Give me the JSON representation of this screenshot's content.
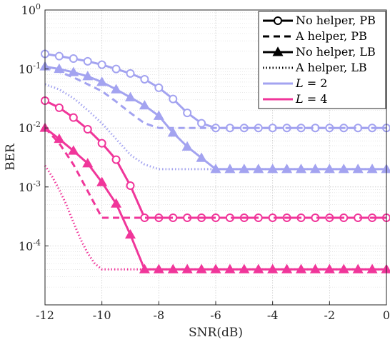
{
  "chart_data": {
    "type": "line",
    "title": "",
    "xlabel": "SNR(dB)",
    "ylabel": "BER",
    "xlim": [
      -12,
      0
    ],
    "ylim": [
      1e-05,
      1
    ],
    "yscale": "log",
    "grid": true,
    "legend_position": "top-right",
    "x_ticks": [
      -12,
      -10,
      -8,
      -6,
      -4,
      -2,
      0
    ],
    "x_tick_labels": [
      "-12",
      "-10",
      "-8",
      "-6",
      "-4",
      "-2",
      "0"
    ],
    "y_ticks": [
      0.0001,
      0.001,
      0.01,
      0.1,
      1
    ],
    "y_tick_labels": [
      {
        "base": "10",
        "exp": "-4"
      },
      {
        "base": "10",
        "exp": "-3"
      },
      {
        "base": "10",
        "exp": "-2"
      },
      {
        "base": "10",
        "exp": "-1"
      },
      {
        "base": "10",
        "exp": "0"
      }
    ],
    "colors": {
      "L2": "#a3a3f0",
      "L4": "#f0369a"
    },
    "legend": [
      {
        "label": "No helper, PB",
        "style": "solid",
        "marker": "circle",
        "color": "#000000"
      },
      {
        "label": "A helper, PB",
        "style": "dashed",
        "marker": "none",
        "color": "#000000"
      },
      {
        "label": "No helper, LB",
        "style": "solid",
        "marker": "triangle",
        "color": "#000000"
      },
      {
        "label": "A helper, LB",
        "style": "dotted",
        "marker": "none",
        "color": "#000000"
      },
      {
        "label_var": "L",
        "label_val": " = 2",
        "style": "solid",
        "marker": "none",
        "color": "#a3a3f0"
      },
      {
        "label_var": "L",
        "label_val": " = 4",
        "style": "solid",
        "marker": "none",
        "color": "#f0369a"
      }
    ],
    "series": [
      {
        "group": "L2",
        "style": "solid",
        "marker": "circle",
        "x": [
          -12,
          -11.5,
          -11,
          -10.5,
          -10,
          -9.5,
          -9,
          -8.5,
          -8,
          -7.5,
          -7,
          -6.5,
          -6,
          -5.5,
          -5,
          -4.5,
          -4,
          -3.5,
          -3,
          -2.5,
          -2,
          -1.5,
          -1,
          -0.5,
          0
        ],
        "y": [
          0.18,
          0.165,
          0.15,
          0.135,
          0.118,
          0.1,
          0.084,
          0.067,
          0.048,
          0.031,
          0.018,
          0.012,
          0.01,
          0.01,
          0.01,
          0.01,
          0.01,
          0.01,
          0.01,
          0.01,
          0.01,
          0.01,
          0.01,
          0.01,
          0.01
        ]
      },
      {
        "group": "L2",
        "style": "dashed",
        "marker": "none",
        "x": [
          -12,
          -11.5,
          -11,
          -10.5,
          -10,
          -9.5,
          -9,
          -8.5,
          -8,
          -7.5,
          -7,
          -6.5,
          -6,
          -3,
          0
        ],
        "y": [
          0.11,
          0.09,
          0.072,
          0.055,
          0.042,
          0.028,
          0.018,
          0.012,
          0.01,
          0.01,
          0.01,
          0.01,
          0.01,
          0.01,
          0.01
        ]
      },
      {
        "group": "L2",
        "style": "solid",
        "marker": "triangle",
        "x": [
          -12,
          -11.5,
          -11,
          -10.5,
          -10,
          -9.5,
          -9,
          -8.5,
          -8,
          -7.5,
          -7,
          -6.5,
          -6,
          -5.5,
          -5,
          -4.5,
          -4,
          -3.5,
          -3,
          -2.5,
          -2,
          -1.5,
          -1,
          -0.5,
          0
        ],
        "y": [
          0.11,
          0.1,
          0.088,
          0.075,
          0.06,
          0.045,
          0.033,
          0.024,
          0.016,
          0.0083,
          0.0048,
          0.0031,
          0.002,
          0.002,
          0.002,
          0.002,
          0.002,
          0.002,
          0.002,
          0.002,
          0.002,
          0.002,
          0.002,
          0.002,
          0.002
        ]
      },
      {
        "group": "L2",
        "style": "dotted",
        "marker": "none",
        "x": [
          -12,
          -11.5,
          -11,
          -10.5,
          -10,
          -9.5,
          -9,
          -8.5,
          -8,
          -7,
          -6,
          0
        ],
        "y": [
          0.055,
          0.045,
          0.032,
          0.02,
          0.012,
          0.0065,
          0.0035,
          0.0024,
          0.002,
          0.002,
          0.002,
          0.002
        ]
      },
      {
        "group": "L4",
        "style": "solid",
        "marker": "circle",
        "x": [
          -12,
          -11.5,
          -11,
          -10.5,
          -10,
          -9.5,
          -9,
          -8.5,
          -8,
          -7.5,
          -7,
          -6.5,
          -6,
          -5.5,
          -5,
          -4.5,
          -4,
          -3.5,
          -3,
          -2.5,
          -2,
          -1.5,
          -1,
          -0.5,
          0
        ],
        "y": [
          0.029,
          0.022,
          0.015,
          0.0095,
          0.0055,
          0.0029,
          0.00105,
          0.0003,
          0.0003,
          0.0003,
          0.0003,
          0.0003,
          0.0003,
          0.0003,
          0.0003,
          0.0003,
          0.0003,
          0.0003,
          0.0003,
          0.0003,
          0.0003,
          0.0003,
          0.0003,
          0.0003,
          0.0003
        ]
      },
      {
        "group": "L4",
        "style": "dashed",
        "marker": "none",
        "x": [
          -12,
          -11.5,
          -11,
          -10.5,
          -10,
          -9.5,
          -9,
          -8,
          -6,
          -4,
          -2,
          0
        ],
        "y": [
          0.01,
          0.0055,
          0.0024,
          0.00085,
          0.0003,
          0.0003,
          0.0003,
          0.0003,
          0.0003,
          0.0003,
          0.0003,
          0.0003
        ]
      },
      {
        "group": "L4",
        "style": "solid",
        "marker": "triangle",
        "x": [
          -12,
          -11.5,
          -11,
          -10.5,
          -10,
          -9.5,
          -9,
          -8.5,
          -8,
          -7.5,
          -7,
          -6.5,
          -6,
          -5.5,
          -5,
          -4.5,
          -4,
          -3.5,
          -3,
          -2.5,
          -2,
          -1.5,
          -1,
          -0.5,
          0
        ],
        "y": [
          0.01,
          0.0065,
          0.0041,
          0.0025,
          0.0012,
          0.00052,
          0.000155,
          4e-05,
          4e-05,
          4e-05,
          4e-05,
          4e-05,
          4e-05,
          4e-05,
          4e-05,
          4e-05,
          4e-05,
          4e-05,
          4e-05,
          4e-05,
          4e-05,
          4e-05,
          4e-05,
          4e-05,
          4e-05
        ]
      },
      {
        "group": "L4",
        "style": "dotted",
        "marker": "none",
        "x": [
          -12,
          -11.75,
          -11.5,
          -11.25,
          -11,
          -10.75,
          -10.5,
          -10.25,
          -10,
          -9,
          -8,
          -6,
          -4,
          -2,
          0
        ],
        "y": [
          0.0023,
          0.0015,
          0.0009,
          0.0005,
          0.00025,
          0.00013,
          7.5e-05,
          5e-05,
          4e-05,
          4e-05,
          4e-05,
          4e-05,
          4e-05,
          4e-05,
          4e-05
        ]
      }
    ]
  }
}
